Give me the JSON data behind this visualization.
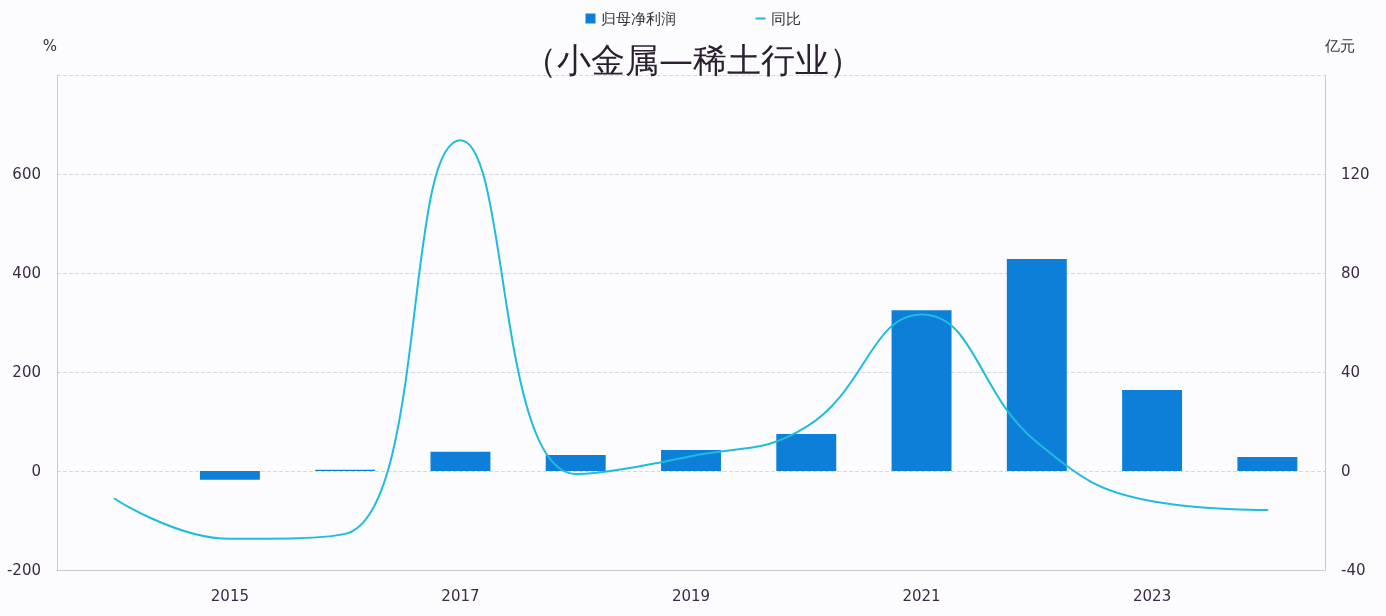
{
  "chart_data": {
    "type": "bar",
    "title": "（小金属—稀土行业）",
    "ylabel": "%",
    "y2label": "亿元",
    "categories": [
      null,
      "2015",
      null,
      "2017",
      null,
      "2019",
      null,
      "2021",
      null,
      "2023",
      null
    ],
    "series": [
      {
        "name": "归母净利润",
        "axis": "y2",
        "color": "#0e7fd9",
        "values": [
          null,
          -3.5,
          0.5,
          7.8,
          6.5,
          8.5,
          15,
          65,
          85.7,
          32.7,
          5.7
        ]
      },
      {
        "name": "同比",
        "type": "line",
        "axis": "y",
        "color": "#1fbcdb",
        "values": [
          -56,
          -137,
          -127,
          668,
          -6,
          30,
          89,
          316,
          58,
          -61,
          -79
        ]
      }
    ],
    "ylim": [
      -200,
      800
    ],
    "yticks": [
      -200,
      0,
      200,
      400,
      600
    ],
    "y2lim": [
      -40,
      160
    ],
    "y2ticks": [
      -40,
      0,
      40,
      80,
      120
    ],
    "grid": "y",
    "legend": "top",
    "marker": "none",
    "line_style": "solid"
  }
}
